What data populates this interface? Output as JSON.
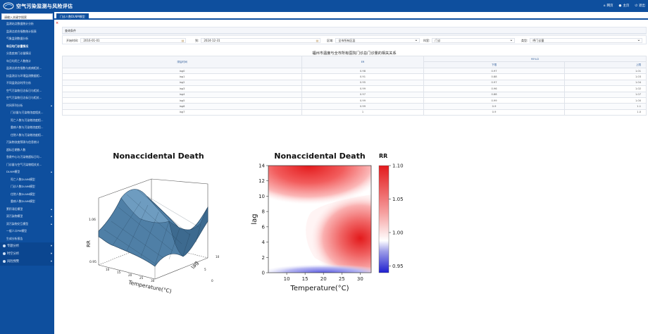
{
  "header": {
    "title": "空气污染监测与风险评估",
    "right_items": [
      "网页",
      "主页",
      "退出"
    ]
  },
  "sidebar": {
    "search_value": "请输入关键字搜索",
    "items": [
      {
        "label": "监测站点数据统计分析",
        "sub": false
      },
      {
        "label": "监测点综合指数统计报表",
        "sub": false
      },
      {
        "label": "气象监测数据分析",
        "sub": false
      },
      {
        "label": "年日均门诊量情况",
        "sub": false,
        "active": true
      },
      {
        "label": "分类疾病门诊量情况",
        "sub": false
      },
      {
        "label": "年日均死亡人数统计",
        "sub": false
      },
      {
        "label": "监测点综合指数与疾病相关...",
        "sub": false
      },
      {
        "label": "抗监测点与环境监测数据相...",
        "sub": false
      },
      {
        "label": "不同监测点时序分析",
        "sub": false
      },
      {
        "label": "空气污染物日达标日与相关...",
        "sub": false
      },
      {
        "label": "空气污染物日达标日与相关...",
        "sub": false
      },
      {
        "label": "时间序列分析",
        "sub": false,
        "arrow": true
      },
      {
        "label": "门诊量与污染物浓度相关...",
        "sub": true
      },
      {
        "label": "死亡人数与污染物浓度相...",
        "sub": true
      },
      {
        "label": "重病人数与污染物浓度相...",
        "sub": true
      },
      {
        "label": "住院人数与污染物浓度相...",
        "sub": true
      },
      {
        "label": "污染物浓度预测与信息统计",
        "sub": false
      },
      {
        "label": "超标日期数人数",
        "sub": false
      },
      {
        "label": "急救中心与污染物超标日均...",
        "sub": false
      },
      {
        "label": "门诊量与空气污染物相关关...",
        "sub": false
      },
      {
        "label": "DLNM模型",
        "sub": false,
        "arrow": true
      },
      {
        "label": "死亡人数DLNM模型",
        "sub": true
      },
      {
        "label": "门诊人数DLNM模型",
        "sub": true
      },
      {
        "label": "住院人数DLNM模型",
        "sub": true
      },
      {
        "label": "重病人数DLNM模型",
        "sub": true
      },
      {
        "label": "累积滞后模型",
        "sub": false,
        "arrow": true
      },
      {
        "label": "双污染物模型",
        "sub": false,
        "arrow": true
      },
      {
        "label": "双污染物交互模型",
        "sub": false,
        "arrow": true
      },
      {
        "label": "一般人口PM模型",
        "sub": false
      },
      {
        "label": "生成分析报告",
        "sub": false
      }
    ],
    "groups": [
      "专题分析",
      "时空分析",
      "风险预警"
    ]
  },
  "tab": {
    "label": "门诊人数DLNM模型"
  },
  "panel": {
    "header": "查询条件"
  },
  "filters": {
    "start_label": "开始时间:",
    "start_value": "2016-01-01",
    "end_label": "到:",
    "end_value": "2024-12-31",
    "area_label": "区域:",
    "area_value": "全市所有区县",
    "hospital_label": "科室:",
    "hospital_value": "门诊",
    "type_label": "类型:",
    "type_value": "呼门诊量"
  },
  "table": {
    "title": "福州市温度与全市所有医院门诊总门诊量的相关关系",
    "headers": {
      "lag": "滞后时间",
      "er": "ER",
      "ci": "95%CI",
      "lower": "下限",
      "upper": "上限"
    },
    "rows": [
      {
        "lag": "lag0",
        "er": "0.98",
        "lower": "0.97",
        "upper": "1.01"
      },
      {
        "lag": "lag1",
        "er": "0.91",
        "lower": "0.88",
        "upper": "1.03"
      },
      {
        "lag": "lag2",
        "er": "0.95",
        "lower": "0.97",
        "upper": "1.04"
      },
      {
        "lag": "lag3",
        "er": "0.99",
        "lower": "0.96",
        "upper": "1.02"
      },
      {
        "lag": "lag4",
        "er": "0.97",
        "lower": "0.88",
        "upper": "1.07"
      },
      {
        "lag": "lag5",
        "er": "0.99",
        "lower": "0.99",
        "upper": "1.00"
      },
      {
        "lag": "lag6",
        "er": "0.99",
        "lower": "0.9",
        "upper": "1.1"
      },
      {
        "lag": "lag7",
        "er": "1",
        "lower": "0.9",
        "upper": "1.0"
      }
    ]
  },
  "figure_left": {
    "title": "Nonaccidental Death",
    "x_label": "Temperature(°C)",
    "y_label": "lag",
    "z_label": "RR",
    "z_ticks": [
      "1.06",
      "0.95"
    ],
    "x_ticks": [
      "10",
      "15",
      "20",
      "25",
      "30"
    ],
    "y_ticks": [
      "0",
      "5",
      "10"
    ]
  },
  "chart_data": {
    "type": "heatmap",
    "title": "Nonaccidental Death",
    "xlabel": "Temperature(°C)",
    "ylabel": "lag",
    "xlim": [
      5,
      33
    ],
    "ylim": [
      0,
      14
    ],
    "x_ticks": [
      10,
      15,
      20,
      25,
      30
    ],
    "y_ticks": [
      0,
      2,
      4,
      6,
      8,
      10,
      12,
      14
    ],
    "colorbar": {
      "label": "RR",
      "ticks": [
        0.95,
        1.0,
        1.05,
        1.1
      ],
      "range": [
        0.94,
        1.1
      ]
    },
    "hot_spots": [
      {
        "x": 16,
        "y": 14,
        "rr": 1.08
      },
      {
        "x": 30,
        "y": 4.5,
        "rr": 1.05
      },
      {
        "x": 20,
        "y": 0,
        "rr": 0.96
      }
    ]
  },
  "colors": {
    "brand": "#0e4f9e",
    "accent_red": "#e31a1c",
    "accent_blue": "#1f1fcf"
  }
}
